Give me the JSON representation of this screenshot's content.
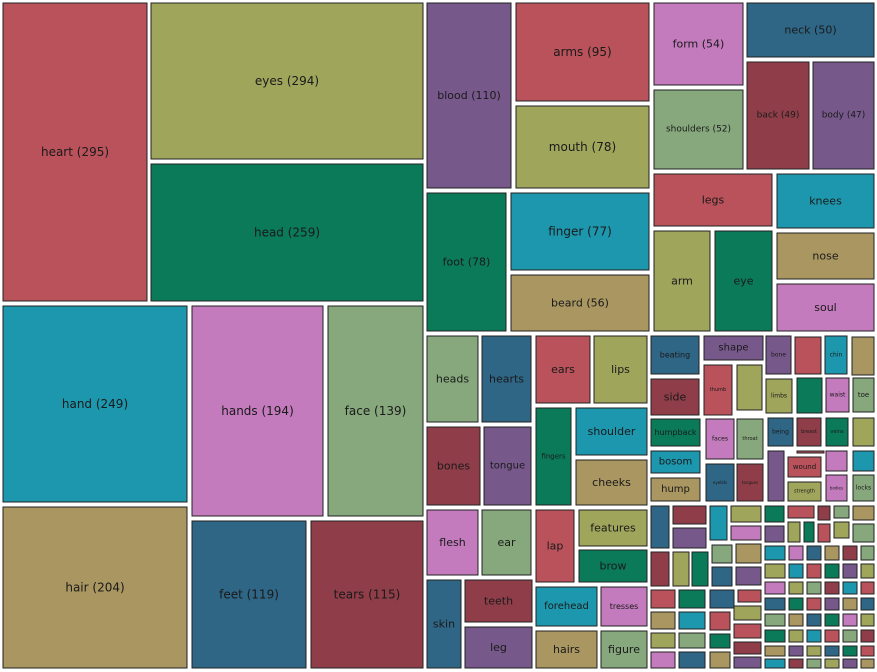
{
  "chart_data": {
    "type": "treemap",
    "colors": {
      "red": "#b9525a",
      "olive": "#a0a55c",
      "green": "#0a7a58",
      "teal": "#1d97ad",
      "pink": "#c47bbd",
      "sage": "#86a87c",
      "navy": "#2f6585",
      "tan": "#a99661",
      "plum": "#77588a",
      "maroon": "#8f3e49"
    },
    "items": [
      {
        "label": "heart (295)",
        "color": "red"
      },
      {
        "label": "eyes (294)",
        "color": "olive"
      },
      {
        "label": "head (259)",
        "color": "green"
      },
      {
        "label": "hand (249)",
        "color": "teal"
      },
      {
        "label": "hands (194)",
        "color": "pink"
      },
      {
        "label": "face (139)",
        "color": "sage"
      },
      {
        "label": "hair (204)",
        "color": "tan"
      },
      {
        "label": "feet (119)",
        "color": "navy"
      },
      {
        "label": "tears (115)",
        "color": "maroon"
      },
      {
        "label": "blood (110)",
        "color": "plum"
      },
      {
        "label": "arms (95)",
        "color": "red"
      },
      {
        "label": "mouth (78)",
        "color": "olive"
      },
      {
        "label": "foot (78)",
        "color": "green"
      },
      {
        "label": "finger (77)",
        "color": "teal"
      },
      {
        "label": "beard (56)",
        "color": "tan"
      },
      {
        "label": "form (54)",
        "color": "pink"
      },
      {
        "label": "neck (50)",
        "color": "navy"
      },
      {
        "label": "shoulders (52)",
        "color": "sage"
      },
      {
        "label": "back (49)",
        "color": "maroon"
      },
      {
        "label": "body (47)",
        "color": "plum"
      },
      {
        "label": "legs",
        "color": "red"
      },
      {
        "label": "knees",
        "color": "teal"
      },
      {
        "label": "arm",
        "color": "olive"
      },
      {
        "label": "eye",
        "color": "green"
      },
      {
        "label": "nose",
        "color": "tan"
      },
      {
        "label": "soul",
        "color": "pink"
      },
      {
        "label": "heads",
        "color": "sage"
      },
      {
        "label": "hearts",
        "color": "navy"
      },
      {
        "label": "ears",
        "color": "red"
      },
      {
        "label": "lips",
        "color": "olive"
      },
      {
        "label": "bones",
        "color": "maroon"
      },
      {
        "label": "tongue",
        "color": "plum"
      },
      {
        "label": "fingers",
        "color": "green"
      },
      {
        "label": "shoulder",
        "color": "teal"
      },
      {
        "label": "cheeks",
        "color": "tan"
      },
      {
        "label": "flesh",
        "color": "pink"
      },
      {
        "label": "ear",
        "color": "sage"
      },
      {
        "label": "lap",
        "color": "red"
      },
      {
        "label": "features",
        "color": "olive"
      },
      {
        "label": "brow",
        "color": "green"
      },
      {
        "label": "skin",
        "color": "navy"
      },
      {
        "label": "teeth",
        "color": "maroon"
      },
      {
        "label": "leg",
        "color": "plum"
      },
      {
        "label": "forehead",
        "color": "teal"
      },
      {
        "label": "tresses",
        "color": "pink"
      },
      {
        "label": "hairs",
        "color": "tan"
      },
      {
        "label": "figure",
        "color": "sage"
      },
      {
        "label": "beating",
        "color": "navy"
      },
      {
        "label": "shape",
        "color": "plum"
      },
      {
        "label": "bone",
        "color": "plum"
      },
      {
        "label": "chin",
        "color": "teal"
      },
      {
        "label": "side",
        "color": "maroon"
      },
      {
        "label": "thumb",
        "color": "red"
      },
      {
        "label": "limbs",
        "color": "olive"
      },
      {
        "label": "waist",
        "color": "pink"
      },
      {
        "label": "toe",
        "color": "sage"
      },
      {
        "label": "humpback",
        "color": "green"
      },
      {
        "label": "faces",
        "color": "pink"
      },
      {
        "label": "throat",
        "color": "sage"
      },
      {
        "label": "being",
        "color": "navy"
      },
      {
        "label": "breast",
        "color": "maroon"
      },
      {
        "label": "veins",
        "color": "green"
      },
      {
        "label": "bosom",
        "color": "teal"
      },
      {
        "label": "wound",
        "color": "red"
      },
      {
        "label": "hump",
        "color": "tan"
      },
      {
        "label": "eyelids",
        "color": "navy"
      },
      {
        "label": "tongues",
        "color": "maroon"
      },
      {
        "label": "strength",
        "color": "olive"
      },
      {
        "label": "bodies",
        "color": "pink"
      },
      {
        "label": "locks",
        "color": "sage"
      }
    ]
  }
}
